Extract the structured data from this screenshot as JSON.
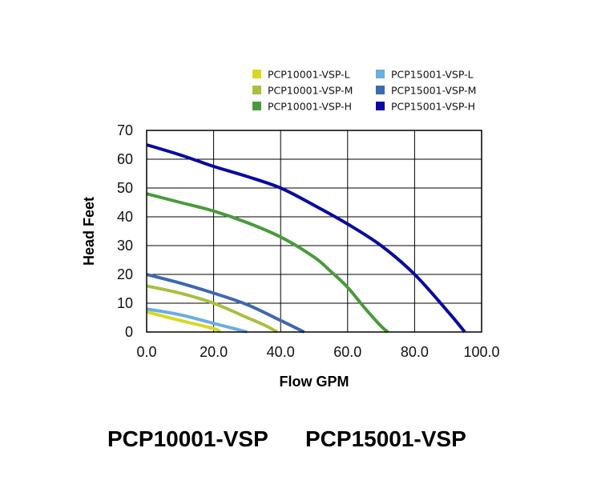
{
  "chart_data": {
    "type": "line",
    "title": "",
    "xlabel": "Flow GPM",
    "ylabel": "Head Feet",
    "xlim": [
      0,
      100
    ],
    "ylim": [
      0,
      70
    ],
    "xticks": [
      "0.0",
      "20.0",
      "40.0",
      "60.0",
      "80.0",
      "100.0"
    ],
    "yticks": [
      "0",
      "10",
      "20",
      "30",
      "40",
      "50",
      "60",
      "70"
    ],
    "grid": true,
    "legend_position": "top-right",
    "series": [
      {
        "name": "PCP10001-VSP-L",
        "color": "#d8d823",
        "points": [
          [
            0,
            7
          ],
          [
            10,
            4
          ],
          [
            20,
            1.2
          ],
          [
            22,
            0
          ]
        ]
      },
      {
        "name": "PCP10001-VSP-M",
        "color": "#a8c040",
        "points": [
          [
            0,
            16
          ],
          [
            10,
            13.5
          ],
          [
            20,
            10
          ],
          [
            30,
            5
          ],
          [
            35,
            2.5
          ],
          [
            39,
            0
          ]
        ]
      },
      {
        "name": "PCP10001-VSP-H",
        "color": "#4a9a3c",
        "points": [
          [
            0,
            48
          ],
          [
            10,
            45
          ],
          [
            20,
            42
          ],
          [
            30,
            38
          ],
          [
            40,
            33
          ],
          [
            50,
            26
          ],
          [
            55,
            21
          ],
          [
            60,
            15.5
          ],
          [
            65,
            8.5
          ],
          [
            70,
            2
          ],
          [
            72,
            0
          ]
        ]
      },
      {
        "name": "PCP15001-VSP-L",
        "color": "#6aaede",
        "points": [
          [
            0,
            8
          ],
          [
            10,
            6
          ],
          [
            20,
            3
          ],
          [
            25,
            1.5
          ],
          [
            30,
            0
          ]
        ]
      },
      {
        "name": "PCP15001-VSP-M",
        "color": "#3e68b0",
        "points": [
          [
            0,
            20
          ],
          [
            10,
            17
          ],
          [
            20,
            13.5
          ],
          [
            30,
            9.5
          ],
          [
            40,
            4
          ],
          [
            47,
            0
          ]
        ]
      },
      {
        "name": "PCP15001-VSP-H",
        "color": "#0a0aa0",
        "points": [
          [
            0,
            65
          ],
          [
            10,
            61.5
          ],
          [
            20,
            57.5
          ],
          [
            30,
            54
          ],
          [
            40,
            50
          ],
          [
            50,
            44
          ],
          [
            60,
            37.5
          ],
          [
            70,
            30
          ],
          [
            80,
            20
          ],
          [
            90,
            7
          ],
          [
            95,
            0
          ]
        ]
      }
    ]
  },
  "footer": {
    "model_a": "PCP10001-VSP",
    "model_b": "PCP15001-VSP"
  }
}
